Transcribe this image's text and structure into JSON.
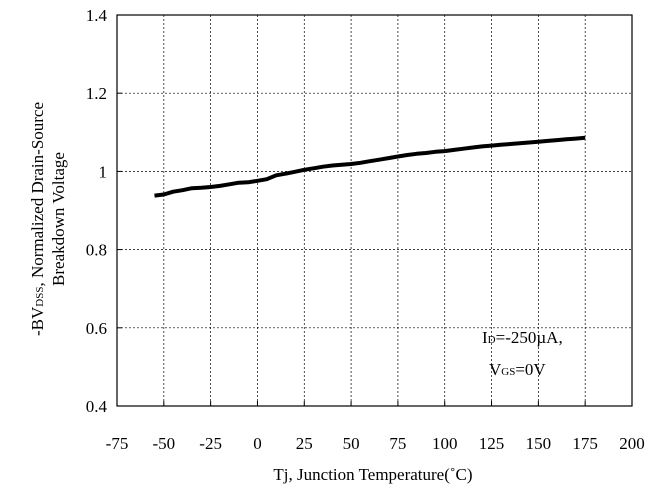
{
  "chart_data": {
    "type": "line",
    "title": "",
    "xlabel": "Tj, Junction Temperature(˚C)",
    "ylabel_line1_prefix": "-BV",
    "ylabel_line1_sub": "DSS",
    "ylabel_line1_suffix": ", Normalized Drain-Source",
    "ylabel_line2": "Breakdown Voltage",
    "xlim": [
      -75,
      200
    ],
    "ylim": [
      0.4,
      1.4
    ],
    "x_ticks": [
      -75,
      -50,
      -25,
      0,
      25,
      50,
      75,
      100,
      125,
      150,
      175,
      200
    ],
    "x_tick_labels": [
      "-75",
      "-50",
      "-25",
      "0",
      "25",
      "50",
      "75",
      "100",
      "125",
      "150",
      "175",
      "200"
    ],
    "y_ticks": [
      0.4,
      0.6,
      0.8,
      1.0,
      1.2,
      1.4
    ],
    "y_tick_labels": [
      "0.4",
      "0.6",
      "0.8",
      "1",
      "1.2",
      "1.4"
    ],
    "grid": true,
    "annotation": {
      "line1_main": "I",
      "line1_sub": "D",
      "line1_rest": "=-250µA,",
      "line2_main": "V",
      "line2_sub": "GS",
      "line2_rest": "=0V"
    },
    "series": [
      {
        "color": "#000000",
        "x": [
          -55,
          -50,
          -45,
          -40,
          -35,
          -30,
          -25,
          -20,
          -15,
          -10,
          -5,
          0,
          5,
          10,
          15,
          20,
          25,
          30,
          35,
          40,
          45,
          50,
          55,
          60,
          65,
          70,
          75,
          80,
          85,
          90,
          95,
          100,
          105,
          110,
          115,
          120,
          125,
          130,
          135,
          140,
          145,
          150,
          155,
          160,
          165,
          170,
          175
        ],
        "y": [
          0.938,
          0.941,
          0.948,
          0.952,
          0.957,
          0.958,
          0.96,
          0.963,
          0.967,
          0.971,
          0.972,
          0.976,
          0.98,
          0.99,
          0.994,
          0.999,
          1.004,
          1.008,
          1.012,
          1.015,
          1.017,
          1.019,
          1.022,
          1.026,
          1.03,
          1.034,
          1.038,
          1.042,
          1.045,
          1.047,
          1.05,
          1.052,
          1.055,
          1.058,
          1.061,
          1.064,
          1.066,
          1.068,
          1.07,
          1.072,
          1.074,
          1.076,
          1.078,
          1.08,
          1.082,
          1.084,
          1.086
        ]
      }
    ]
  }
}
